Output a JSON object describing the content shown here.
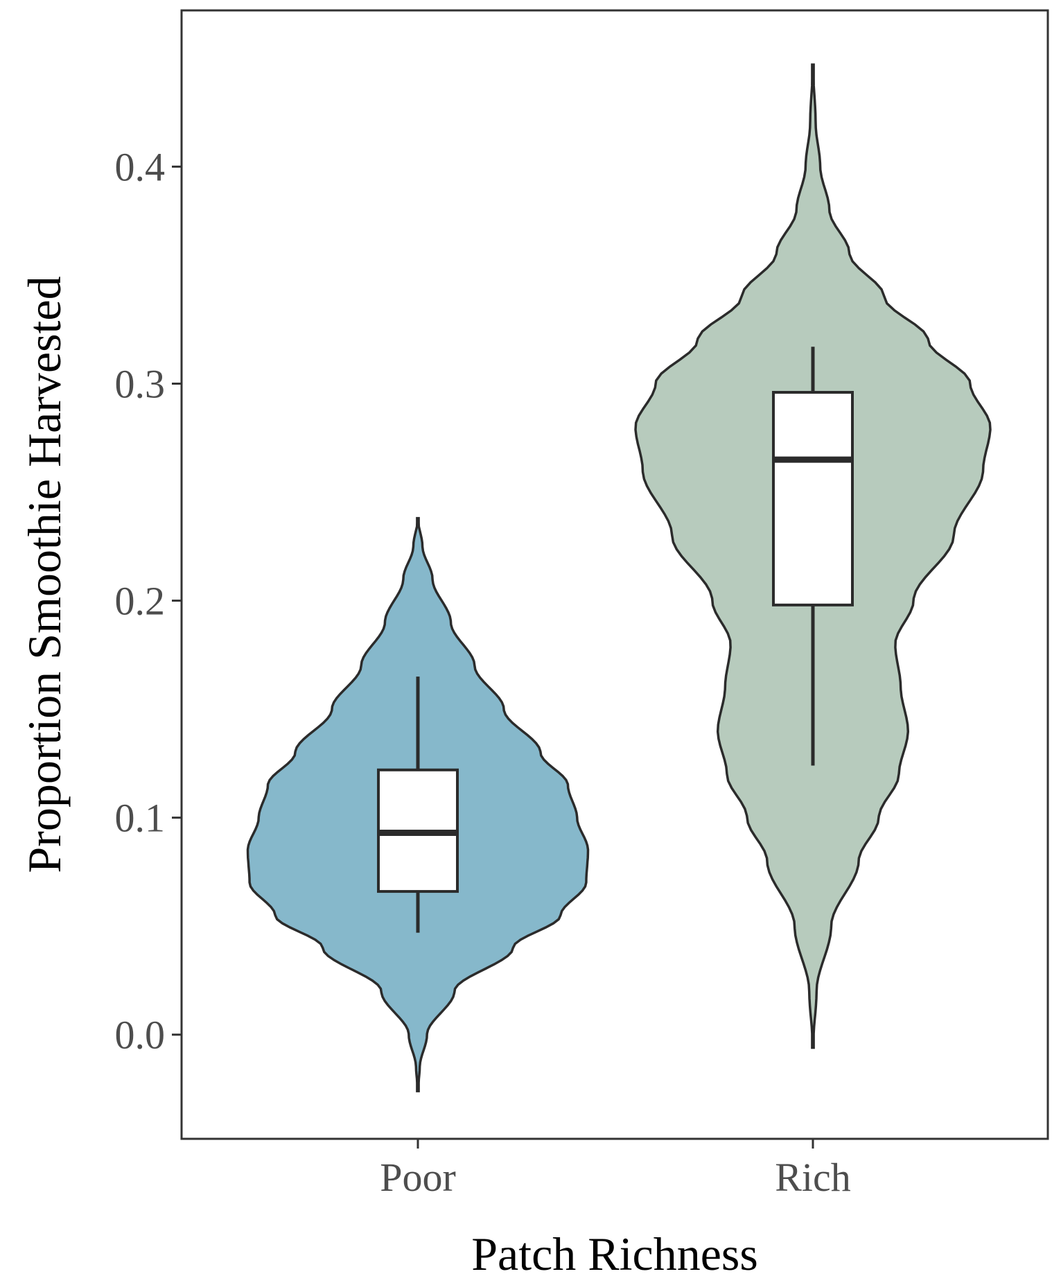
{
  "chart_data": {
    "type": "violin",
    "xlabel": "Patch Richness",
    "ylabel": "Proportion Smoothie Harvested",
    "categories": [
      "Poor",
      "Rich"
    ],
    "yticks": [
      "0.0",
      "0.1",
      "0.2",
      "0.3",
      "0.4"
    ],
    "ylim": [
      -0.048,
      0.472
    ],
    "grid": false,
    "legend": "none",
    "series": [
      {
        "category": "Poor",
        "color": "#86b8cb",
        "box": {
          "whisker_low": 0.047,
          "q1": 0.066,
          "median": 0.093,
          "q3": 0.122,
          "whisker_high": 0.165
        },
        "violin_range": [
          -0.026,
          0.238
        ],
        "density_profile": [
          [
            -0.026,
            0.0
          ],
          [
            -0.015,
            0.01
          ],
          [
            0.0,
            0.05
          ],
          [
            0.02,
            0.2
          ],
          [
            0.04,
            0.52
          ],
          [
            0.055,
            0.78
          ],
          [
            0.07,
            0.92
          ],
          [
            0.085,
            0.93
          ],
          [
            0.1,
            0.87
          ],
          [
            0.115,
            0.82
          ],
          [
            0.13,
            0.67
          ],
          [
            0.15,
            0.47
          ],
          [
            0.17,
            0.31
          ],
          [
            0.19,
            0.18
          ],
          [
            0.21,
            0.08
          ],
          [
            0.225,
            0.025
          ],
          [
            0.238,
            0.0
          ]
        ]
      },
      {
        "category": "Rich",
        "color": "#b7cbbd",
        "box": {
          "whisker_low": 0.124,
          "q1": 0.198,
          "median": 0.265,
          "q3": 0.296,
          "whisker_high": 0.317
        },
        "violin_range": [
          -0.006,
          0.447
        ],
        "density_profile": [
          [
            -0.006,
            0.0
          ],
          [
            0.02,
            0.02
          ],
          [
            0.05,
            0.1
          ],
          [
            0.08,
            0.25
          ],
          [
            0.1,
            0.36
          ],
          [
            0.12,
            0.47
          ],
          [
            0.14,
            0.52
          ],
          [
            0.16,
            0.48
          ],
          [
            0.18,
            0.45
          ],
          [
            0.2,
            0.55
          ],
          [
            0.23,
            0.77
          ],
          [
            0.26,
            0.93
          ],
          [
            0.28,
            0.97
          ],
          [
            0.3,
            0.86
          ],
          [
            0.32,
            0.63
          ],
          [
            0.34,
            0.39
          ],
          [
            0.36,
            0.2
          ],
          [
            0.38,
            0.09
          ],
          [
            0.4,
            0.04
          ],
          [
            0.42,
            0.015
          ],
          [
            0.447,
            0.0
          ]
        ]
      }
    ]
  }
}
